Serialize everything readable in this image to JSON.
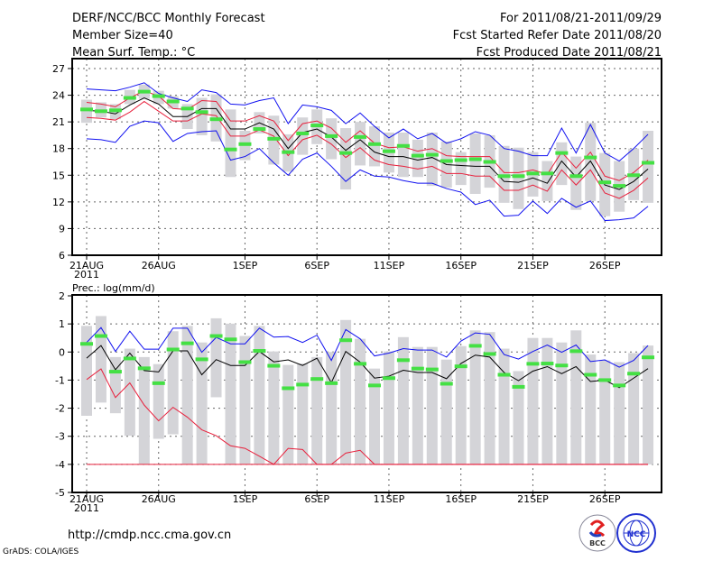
{
  "header": {
    "title": "DERF/NCC/BCC Monthly Forecast",
    "member_size": "Member Size=40",
    "variable": "Mean Surf. Temp.: °C",
    "period": "For 2011/08/21-2011/09/29",
    "refer_date": "Fcst Started Refer Date 2011/08/20",
    "produced_date": "Fcst Produced Date 2011/08/21"
  },
  "footer": {
    "url": "http://cmdp.ncc.cma.gov.cn",
    "credit": "GrADS: COLA/IGES",
    "logo_bcc": "BCC",
    "logo_ncc": "NCC"
  },
  "colors": {
    "mean": "#000000",
    "spread": "#e8203c",
    "extreme": "#1010f0",
    "green": "#44e044",
    "box": "#d4d4d8",
    "grid": "#666666"
  },
  "chart_data": [
    {
      "type": "line",
      "title": "Mean Surf. Temp.: °C",
      "ylabel": "",
      "ylim": [
        6,
        27
      ],
      "yticks": [
        "6",
        "9",
        "12",
        "15",
        "18",
        "21",
        "24",
        "27"
      ],
      "xticks": [
        {
          "day": 0,
          "label": "21AUG"
        },
        {
          "day": 5,
          "label": "26AUG"
        },
        {
          "day": 11,
          "label": "1SEP"
        },
        {
          "day": 16,
          "label": "6SEP"
        },
        {
          "day": 21,
          "label": "11SEP"
        },
        {
          "day": 26,
          "label": "16SEP"
        },
        {
          "day": 31,
          "label": "21SEP"
        },
        {
          "day": 36,
          "label": "26SEP"
        }
      ],
      "year_label": "2011",
      "ensemble_mean": [
        22.3,
        22.2,
        21.9,
        22.9,
        23.7,
        23.0,
        21.6,
        21.6,
        22.5,
        22.5,
        20.2,
        20.2,
        20.9,
        20.2,
        18.0,
        19.8,
        20.2,
        19.3,
        17.8,
        19.0,
        17.6,
        17.1,
        17.1,
        16.7,
        17.0,
        16.2,
        16.1,
        16.0,
        16.0,
        14.3,
        14.2,
        14.7,
        14.1,
        16.6,
        14.8,
        16.6,
        13.9,
        13.4,
        14.3,
        15.7
      ],
      "spread_upper": [
        23.2,
        23.0,
        22.7,
        23.7,
        24.5,
        23.9,
        22.5,
        22.4,
        23.4,
        23.3,
        21.1,
        21.1,
        21.7,
        21.1,
        18.9,
        20.8,
        21.1,
        20.3,
        18.7,
        20.0,
        18.6,
        18.1,
        18.2,
        17.7,
        18.0,
        17.2,
        17.1,
        17.1,
        17.1,
        15.3,
        15.3,
        15.6,
        15.1,
        17.6,
        15.8,
        17.6,
        14.9,
        14.4,
        15.3,
        16.7
      ],
      "spread_lower": [
        21.5,
        21.4,
        21.2,
        22.1,
        23.3,
        22.2,
        21.1,
        21.1,
        21.9,
        21.7,
        19.4,
        19.4,
        20.1,
        19.4,
        17.2,
        19.0,
        19.5,
        18.5,
        17.0,
        18.1,
        16.7,
        16.2,
        16.0,
        15.7,
        16.0,
        15.2,
        15.2,
        14.9,
        14.9,
        13.3,
        13.3,
        13.9,
        13.2,
        15.6,
        13.9,
        15.6,
        13.0,
        12.4,
        13.3,
        14.7
      ],
      "ensemble_max": [
        24.7,
        24.6,
        24.5,
        24.9,
        25.4,
        24.2,
        23.7,
        23.3,
        24.6,
        24.3,
        23.0,
        22.9,
        23.4,
        23.7,
        20.8,
        22.9,
        22.7,
        22.3,
        20.8,
        22.0,
        20.5,
        19.2,
        20.2,
        19.1,
        19.7,
        18.6,
        19.1,
        19.9,
        19.5,
        18.0,
        17.7,
        17.2,
        17.2,
        20.3,
        17.5,
        20.7,
        17.5,
        16.6,
        18.0,
        19.6
      ],
      "ensemble_min": [
        19.1,
        19.0,
        18.7,
        20.5,
        21.1,
        20.9,
        18.8,
        19.7,
        19.9,
        20.0,
        16.7,
        17.1,
        18.0,
        16.4,
        15.0,
        16.8,
        17.5,
        16.0,
        14.3,
        15.6,
        14.9,
        14.8,
        14.4,
        14.1,
        14.1,
        13.5,
        13.1,
        11.7,
        12.2,
        10.4,
        10.5,
        12.1,
        10.7,
        12.4,
        11.4,
        12.1,
        9.9,
        10.0,
        10.2,
        11.5
      ],
      "green_marker": [
        22.4,
        22.2,
        22.3,
        23.7,
        24.4,
        23.9,
        23.3,
        22.5,
        22.1,
        21.3,
        17.9,
        18.5,
        20.2,
        19.1,
        17.6,
        19.7,
        20.6,
        19.4,
        17.5,
        19.3,
        18.5,
        17.7,
        18.3,
        17.2,
        17.3,
        16.6,
        16.7,
        16.8,
        16.5,
        14.9,
        14.9,
        15.2,
        15.2,
        17.5,
        14.9,
        17.0,
        14.2,
        13.8,
        15.0,
        16.4
      ],
      "box_high": [
        23.5,
        23.2,
        23.0,
        24.6,
        25.2,
        24.5,
        23.9,
        23.0,
        23.7,
        24.1,
        22.4,
        20.0,
        22.1,
        21.7,
        19.6,
        21.5,
        22.4,
        21.4,
        20.3,
        21.0,
        20.5,
        19.8,
        19.8,
        19.0,
        19.8,
        18.8,
        17.6,
        19.7,
        19.5,
        18.3,
        18.1,
        17.6,
        16.6,
        18.7,
        17.1,
        20.9,
        17.5,
        16.6,
        18.0,
        20.0
      ],
      "box_low": [
        20.9,
        21.5,
        21.3,
        23.0,
        23.6,
        23.0,
        22.5,
        20.2,
        19.5,
        18.8,
        14.8,
        16.7,
        19.7,
        16.2,
        15.4,
        17.3,
        18.5,
        16.8,
        13.4,
        16.1,
        16.0,
        15.3,
        14.8,
        14.8,
        13.8,
        13.6,
        13.9,
        12.9,
        13.6,
        11.9,
        11.2,
        12.6,
        12.1,
        13.9,
        11.1,
        12.1,
        10.4,
        10.9,
        12.2,
        11.9
      ]
    },
    {
      "type": "line",
      "title": "Prec.: log(mm/d)",
      "ylabel": "",
      "ylim": [
        -5,
        2
      ],
      "yticks": [
        "-5",
        "-4",
        "-3",
        "-2",
        "-1",
        "0",
        "1",
        "2"
      ],
      "xticks": [
        {
          "day": 0,
          "label": "21AUG"
        },
        {
          "day": 5,
          "label": "26AUG"
        },
        {
          "day": 11,
          "label": "1SEP"
        },
        {
          "day": 16,
          "label": "6SEP"
        },
        {
          "day": 21,
          "label": "11SEP"
        },
        {
          "day": 26,
          "label": "16SEP"
        },
        {
          "day": 31,
          "label": "21SEP"
        },
        {
          "day": 36,
          "label": "26SEP"
        }
      ],
      "year_label": "2011",
      "ensemble_mean": [
        -0.22,
        0.23,
        -0.63,
        -0.04,
        -0.66,
        -0.71,
        0.04,
        0.04,
        -0.81,
        -0.27,
        -0.48,
        -0.48,
        0.02,
        -0.35,
        -0.28,
        -0.48,
        -0.22,
        -1.09,
        0.02,
        -0.36,
        -0.93,
        -0.86,
        -0.65,
        -0.73,
        -0.73,
        -0.95,
        -0.41,
        -0.11,
        -0.18,
        -0.73,
        -1.02,
        -0.68,
        -0.52,
        -0.77,
        -0.52,
        -1.05,
        -1.0,
        -1.27,
        -0.93,
        -0.59
      ],
      "ensemble_max": [
        0.34,
        0.87,
        0.02,
        0.74,
        0.1,
        0.1,
        0.85,
        0.85,
        -0.01,
        0.52,
        0.29,
        0.29,
        0.85,
        0.53,
        0.55,
        0.34,
        0.6,
        -0.3,
        0.8,
        0.47,
        -0.14,
        -0.04,
        0.12,
        0.07,
        0.07,
        -0.18,
        0.39,
        0.68,
        0.63,
        -0.09,
        -0.25,
        0.02,
        0.25,
        -0.01,
        0.25,
        -0.34,
        -0.28,
        -0.54,
        -0.3,
        0.23
      ],
      "ensemble_min": [
        -0.98,
        -0.6,
        -1.62,
        -1.1,
        -1.89,
        -2.45,
        -1.97,
        -2.32,
        -2.77,
        -2.98,
        -3.34,
        -3.43,
        -3.71,
        -4.0,
        -3.43,
        -3.47,
        -4.0,
        -4.0,
        -3.6,
        -3.5,
        -4,
        -4,
        -4,
        -4,
        -4,
        -4,
        -4,
        -4,
        -4,
        -4,
        -4,
        -4,
        -4,
        -4,
        -4,
        -4,
        -4,
        -4,
        -4,
        -4
      ],
      "floor": -4,
      "green_marker": [
        0.29,
        0.57,
        -0.7,
        -0.23,
        -0.58,
        -1.11,
        0.09,
        0.31,
        -0.26,
        0.57,
        0.45,
        -0.36,
        0.04,
        -0.49,
        -1.29,
        -1.16,
        -0.96,
        -1.11,
        0.42,
        -0.42,
        -1.19,
        -0.93,
        -0.29,
        -0.59,
        -0.62,
        -1.13,
        -0.51,
        0.22,
        -0.07,
        -0.81,
        -1.24,
        -0.42,
        -0.41,
        -0.48,
        0.03,
        -0.81,
        -1.0,
        -1.19,
        -0.77,
        -0.19
      ],
      "box_high": [
        0.93,
        1.28,
        -0.18,
        0.12,
        -0.18,
        -0.43,
        0.74,
        0.93,
        0.34,
        1.2,
        1.01,
        0.57,
        0.93,
        0.02,
        -0.46,
        -0.41,
        -0.18,
        0.0,
        1.14,
        0.47,
        -0.59,
        0.02,
        0.53,
        0.18,
        0.18,
        -0.27,
        0.21,
        0.77,
        0.71,
        0.12,
        -0.68,
        0.5,
        0.5,
        0.34,
        0.77,
        -0.09,
        -0.3,
        -0.36,
        -0.04,
        0.23
      ],
      "box_low": [
        -2.27,
        -1.8,
        -2.18,
        -2.98,
        -4,
        -3.09,
        -2.93,
        -4,
        -4,
        -1.61,
        -4,
        -4,
        -4,
        -4,
        -4,
        -4,
        -4,
        -4,
        -4,
        -4,
        -4,
        -4,
        -4,
        -4,
        -4,
        -4,
        -4,
        -4,
        -4,
        -4,
        -4,
        -4,
        -4,
        -4,
        -4,
        -4,
        -4,
        -4,
        -4,
        -4
      ]
    }
  ]
}
